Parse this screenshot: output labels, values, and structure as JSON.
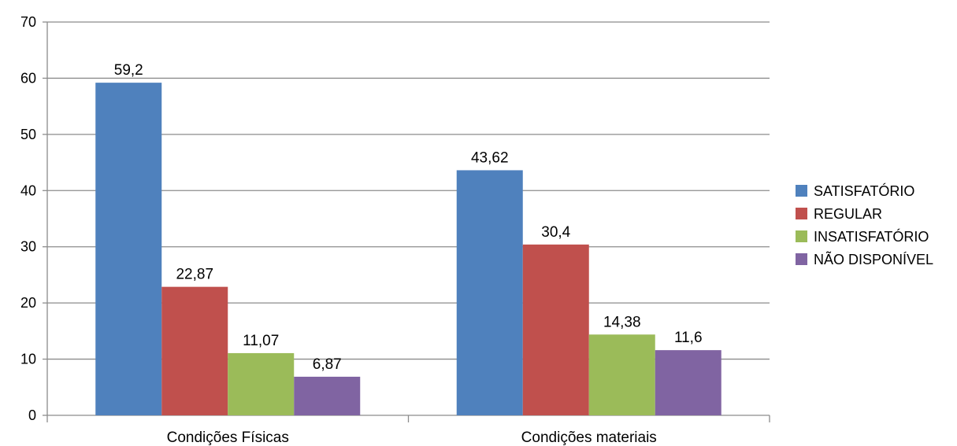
{
  "chart_data": {
    "type": "bar",
    "categories": [
      "Condições Físicas",
      "Condições materiais"
    ],
    "series": [
      {
        "name": "SATISFATÓRIO",
        "values": [
          59.2,
          43.62
        ],
        "labels": [
          "59,2",
          "43,62"
        ],
        "color": "#4f81bd"
      },
      {
        "name": "REGULAR",
        "values": [
          22.87,
          30.4
        ],
        "labels": [
          "22,87",
          "30,4"
        ],
        "color": "#c0504d"
      },
      {
        "name": "INSATISFATÓRIO",
        "values": [
          11.07,
          14.38
        ],
        "labels": [
          "11,07",
          "14,38"
        ],
        "color": "#9bbb59"
      },
      {
        "name": "NÃO DISPONÍVEL",
        "values": [
          6.87,
          11.6
        ],
        "labels": [
          "6,87",
          "11,6"
        ],
        "color": "#8064a2"
      }
    ],
    "yticks": [
      "0",
      "10",
      "20",
      "30",
      "40",
      "50",
      "60",
      "70"
    ],
    "ylim": [
      0,
      70
    ],
    "grid": true,
    "legend": "right",
    "title": "",
    "xlabel": "",
    "ylabel": ""
  }
}
